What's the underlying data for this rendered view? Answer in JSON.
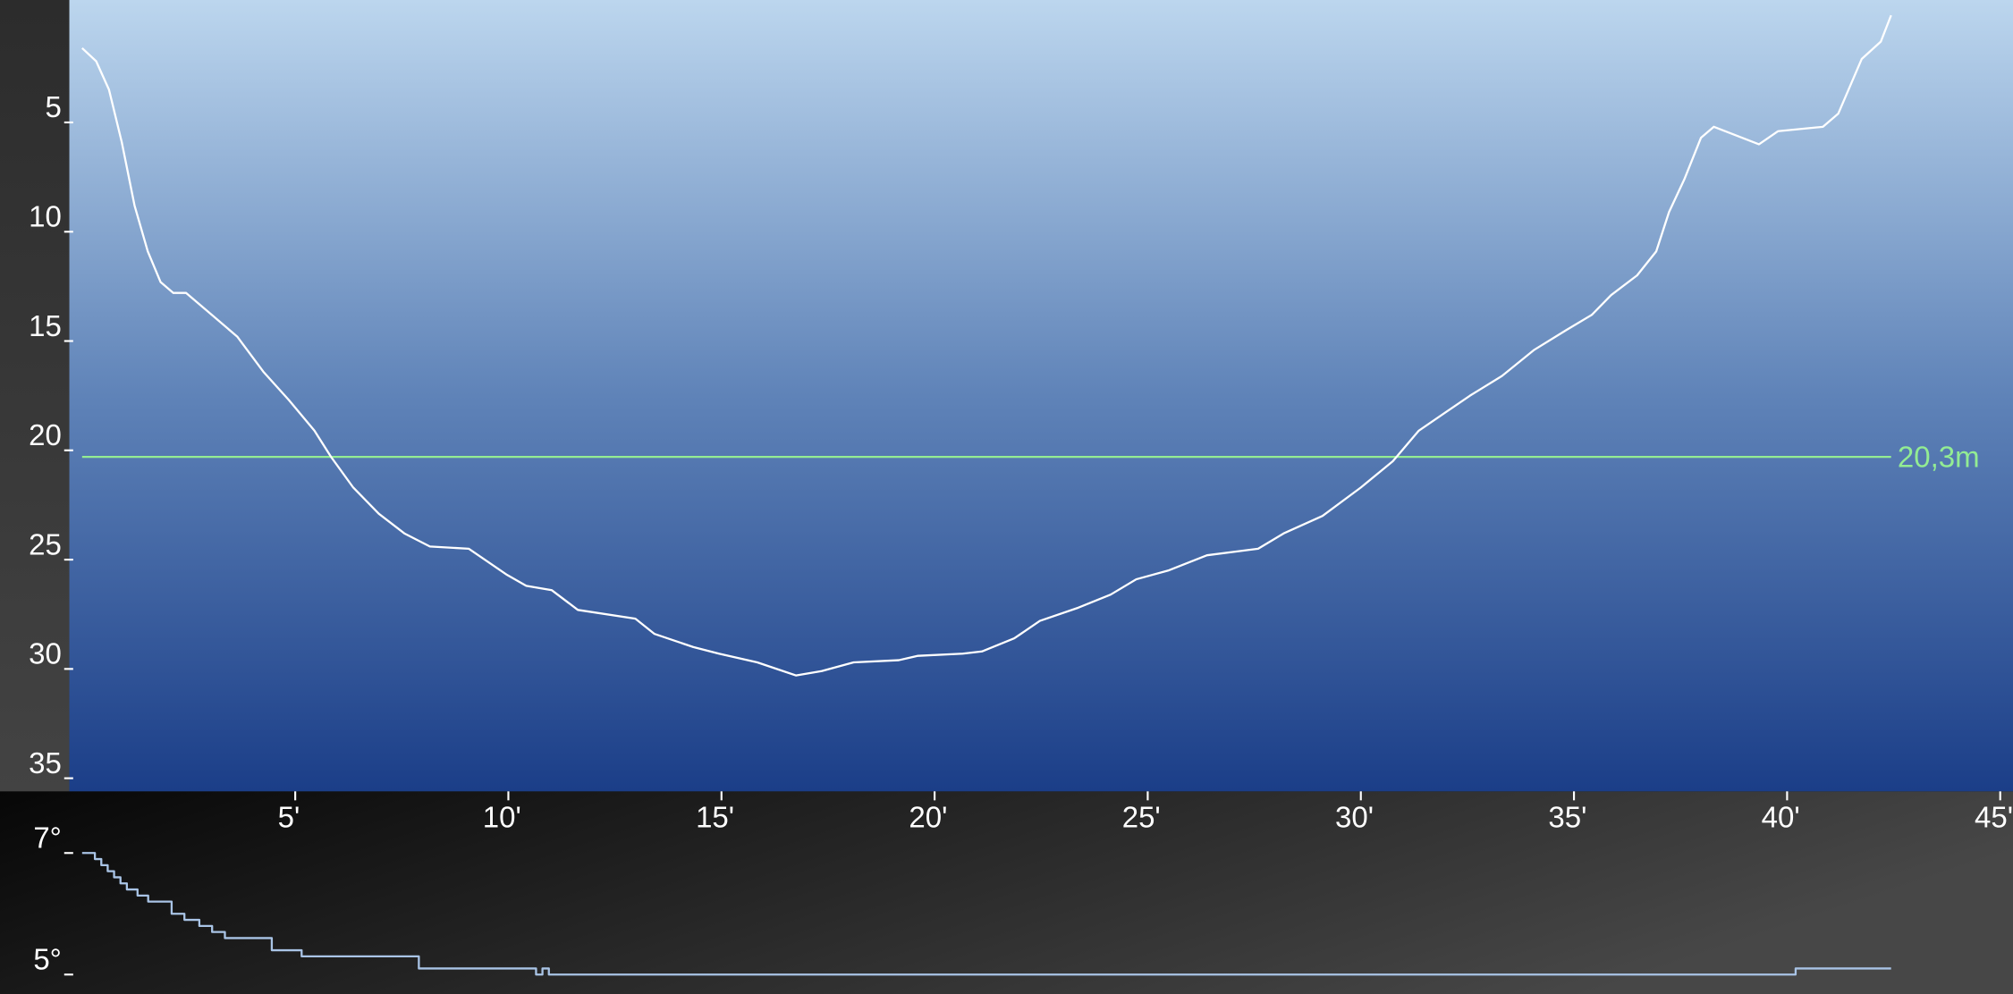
{
  "chart_data": [
    {
      "type": "line",
      "invert_y": true,
      "color": "#ffffff",
      "x": [
        0,
        0.33,
        0.63,
        0.93,
        1.23,
        1.54,
        1.84,
        2.14,
        2.44,
        3.04,
        3.64,
        4.25,
        4.85,
        5.45,
        5.84,
        6.36,
        6.96,
        7.56,
        8.16,
        9.07,
        9.97,
        10.42,
        11.02,
        11.63,
        12.98,
        13.43,
        14.34,
        14.94,
        15.84,
        16.75,
        17.35,
        18.1,
        19.16,
        19.61,
        20.66,
        21.11,
        21.87,
        22.47,
        23.37,
        24.13,
        24.73,
        25.48,
        26.39,
        27.59,
        28.19,
        29.1,
        30.0,
        30.75,
        31.36,
        31.96,
        32.56,
        33.31,
        34.07,
        34.82,
        35.42,
        35.87,
        36.48,
        36.93,
        37.23,
        37.59,
        37.98,
        38.28,
        39.34,
        39.79,
        40.84,
        41.2,
        41.75,
        42.2,
        42.44
      ],
      "values": [
        1.6,
        2.2,
        3.5,
        5.9,
        8.8,
        10.9,
        12.3,
        12.8,
        12.8,
        13.8,
        14.8,
        16.4,
        17.7,
        19.1,
        20.3,
        21.7,
        22.9,
        23.8,
        24.4,
        24.5,
        25.7,
        26.2,
        26.4,
        27.3,
        27.7,
        28.4,
        29.0,
        29.3,
        29.7,
        30.3,
        30.1,
        29.7,
        29.6,
        29.4,
        29.3,
        29.2,
        28.6,
        27.8,
        27.2,
        26.6,
        25.9,
        25.5,
        24.8,
        24.5,
        23.8,
        23.0,
        21.7,
        20.5,
        19.1,
        18.3,
        17.5,
        16.6,
        15.4,
        14.5,
        13.8,
        12.9,
        12.0,
        10.9,
        9.1,
        7.6,
        5.7,
        5.2,
        6.0,
        5.4,
        5.2,
        4.6,
        2.1,
        1.3,
        0.1
      ],
      "xlim": [
        -0.3,
        45.3
      ],
      "ylim": [
        -0.6,
        35.6
      ],
      "xticks": [
        {
          "value": 5,
          "label": "5'"
        },
        {
          "value": 10,
          "label": "10'"
        },
        {
          "value": 15,
          "label": "15'"
        },
        {
          "value": 20,
          "label": "20'"
        },
        {
          "value": 25,
          "label": "25'"
        },
        {
          "value": 30,
          "label": "30'"
        },
        {
          "value": 35,
          "label": "35'"
        },
        {
          "value": 40,
          "label": "40'"
        },
        {
          "value": 45,
          "label": "45'"
        }
      ],
      "yticks": [
        5,
        10,
        15,
        20,
        25,
        30,
        35
      ],
      "reference": {
        "value": 20.3,
        "label": "20,3m",
        "color": "#93ec93"
      }
    },
    {
      "type": "line",
      "step": "post",
      "color": "#a9c4e6",
      "x": [
        0,
        0.3,
        0.45,
        0.6,
        0.75,
        0.9,
        1.05,
        1.3,
        1.55,
        2.1,
        2.4,
        2.75,
        3.05,
        3.35,
        4.45,
        5.15,
        7.9,
        10.65,
        10.8,
        10.95,
        40.2,
        42.44
      ],
      "values": [
        7.0,
        6.9,
        6.8,
        6.7,
        6.6,
        6.5,
        6.4,
        6.3,
        6.2,
        6.0,
        5.9,
        5.8,
        5.7,
        5.6,
        5.4,
        5.3,
        5.1,
        5.0,
        5.1,
        5.0,
        5.1,
        5.1
      ],
      "xlim": [
        -0.3,
        45.3
      ],
      "ylim": [
        4.68,
        7.74
      ],
      "yticks": [
        {
          "value": 7,
          "label": "7°"
        },
        {
          "value": 5,
          "label": "5°"
        }
      ]
    }
  ]
}
